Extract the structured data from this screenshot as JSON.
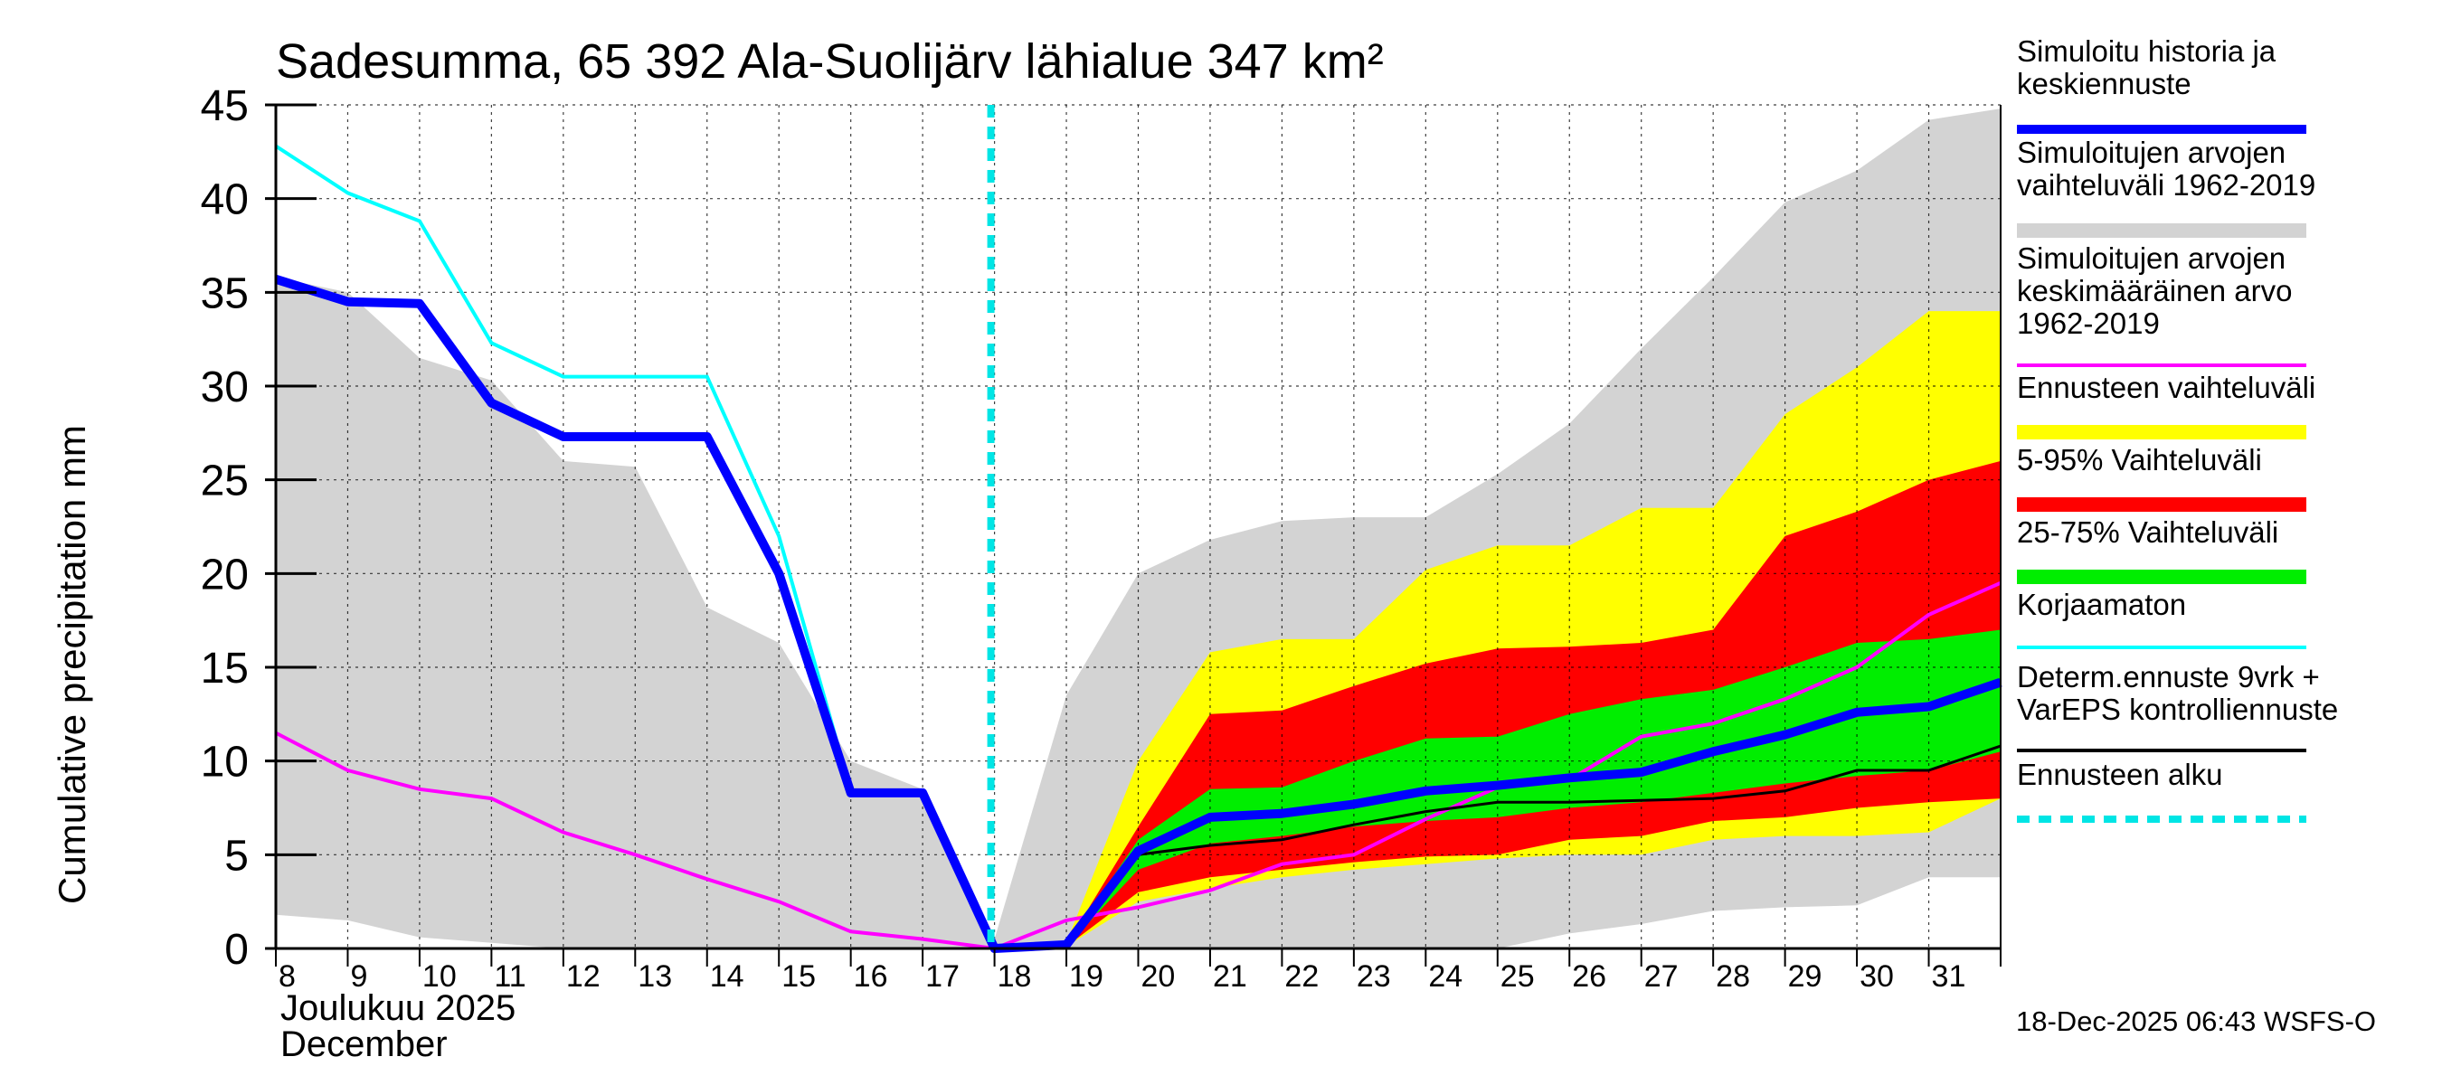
{
  "chart_data": {
    "type": "area",
    "title": "Sadesumma, 65 392 Ala-Suolijärv lähialue 347 km²",
    "ylabel": "Cumulative precipitation   mm",
    "xlabel_fi": "Joulukuu  2025",
    "xlabel_en": "December",
    "timestamp": "18-Dec-2025 06:43 WSFS-O",
    "ylim": [
      0,
      45
    ],
    "y_ticks": [
      0,
      5,
      10,
      15,
      20,
      25,
      30,
      35,
      40,
      45
    ],
    "y_tick_labels": [
      "0",
      "5",
      "10",
      "15",
      "20",
      "25",
      "30",
      "35",
      "40",
      "45"
    ],
    "x_range": [
      8,
      32
    ],
    "x_ticks": [
      8,
      9,
      10,
      11,
      12,
      13,
      14,
      15,
      16,
      17,
      18,
      19,
      20,
      21,
      22,
      23,
      24,
      25,
      26,
      27,
      28,
      29,
      30,
      31
    ],
    "x_tick_labels": [
      "8",
      "9",
      "10",
      "11",
      "12",
      "13",
      "14",
      "15",
      "16",
      "17",
      "18",
      "19",
      "20",
      "21",
      "22",
      "23",
      "24",
      "25",
      "26",
      "27",
      "28",
      "29",
      "30",
      "31"
    ],
    "forecast_start": 18,
    "colors": {
      "hist_range": "#d3d3d3",
      "ens_full": "#ffff00",
      "ens_5_95": "#ff0000",
      "ens_25_75": "#00ee00",
      "mean": "#ff00ff",
      "uncorrected": "#00ffff",
      "simulated": "#0000ff",
      "determ": "#000000",
      "forecast_start": "#00e5e5"
    },
    "series": [
      {
        "name": "hist_range",
        "x": [
          8,
          9,
          10,
          11,
          12,
          13,
          14,
          15,
          16,
          17,
          18,
          19,
          20,
          21,
          22,
          23,
          24,
          25,
          26,
          27,
          28,
          29,
          30,
          31,
          32
        ],
        "upper": [
          35.8,
          35.0,
          31.5,
          30.3,
          26.0,
          25.7,
          18.2,
          16.3,
          10.0,
          8.5,
          0.5,
          13.5,
          20.0,
          21.8,
          22.8,
          23.0,
          23.0,
          25.3,
          28.0,
          32.0,
          35.8,
          39.8,
          41.5,
          44.2,
          44.8
        ],
        "lower": [
          1.8,
          1.5,
          0.6,
          0.3,
          0.0,
          0.0,
          0.0,
          0.0,
          0.0,
          0.0,
          0.0,
          0.0,
          0.0,
          0.0,
          0.0,
          0.0,
          0.0,
          0.0,
          0.8,
          1.3,
          2.0,
          2.2,
          2.3,
          3.8,
          3.8
        ]
      },
      {
        "name": "ens_full",
        "x": [
          18,
          19,
          20,
          21,
          22,
          23,
          24,
          25,
          26,
          27,
          28,
          29,
          30,
          31,
          32
        ],
        "upper": [
          0.0,
          0.3,
          10.0,
          15.8,
          16.5,
          16.5,
          20.2,
          21.5,
          21.5,
          23.5,
          23.5,
          28.5,
          31.0,
          34.0,
          34.0
        ],
        "lower": [
          0.0,
          0.1,
          2.5,
          3.2,
          3.8,
          4.2,
          4.5,
          4.8,
          5.0,
          5.0,
          5.8,
          6.0,
          6.0,
          6.2,
          8.0
        ]
      },
      {
        "name": "ens_5_95",
        "x": [
          18,
          19,
          20,
          21,
          22,
          23,
          24,
          25,
          26,
          27,
          28,
          29,
          30,
          31,
          32
        ],
        "upper": [
          0.0,
          0.2,
          6.5,
          12.5,
          12.7,
          14.0,
          15.2,
          16.0,
          16.1,
          16.3,
          17.0,
          22.0,
          23.3,
          25.0,
          26.0
        ],
        "lower": [
          0.0,
          0.1,
          3.0,
          3.8,
          4.2,
          4.6,
          4.9,
          5.0,
          5.8,
          6.0,
          6.8,
          7.0,
          7.5,
          7.8,
          8.0
        ]
      },
      {
        "name": "ens_25_75",
        "x": [
          18,
          19,
          20,
          21,
          22,
          23,
          24,
          25,
          26,
          27,
          28,
          29,
          30,
          31,
          32
        ],
        "upper": [
          0.0,
          0.2,
          5.8,
          8.5,
          8.6,
          10.0,
          11.2,
          11.3,
          12.5,
          13.3,
          13.8,
          15.0,
          16.3,
          16.5,
          17.0
        ],
        "lower": [
          0.0,
          0.1,
          4.2,
          5.6,
          6.0,
          6.5,
          6.8,
          7.0,
          7.5,
          7.8,
          8.3,
          8.8,
          9.2,
          9.5,
          10.5
        ]
      },
      {
        "name": "mean",
        "label": "Simuloitujen arvojen keskimääräinen arvo 1962-2019",
        "x": [
          8,
          9,
          10,
          11,
          12,
          13,
          14,
          15,
          16,
          17,
          18,
          19,
          20,
          21,
          22,
          23,
          24,
          25,
          26,
          27,
          28,
          29,
          30,
          31,
          32
        ],
        "y": [
          11.5,
          9.5,
          8.5,
          8.0,
          6.2,
          5.0,
          3.7,
          2.5,
          0.9,
          0.5,
          0.0,
          1.5,
          2.2,
          3.1,
          4.5,
          5.0,
          6.9,
          8.6,
          9.0,
          11.3,
          12.0,
          13.3,
          15.0,
          17.8,
          19.5
        ]
      },
      {
        "name": "uncorrected",
        "label": "Korjaamaton",
        "x": [
          8,
          9,
          10,
          11,
          12,
          13,
          14,
          15,
          16,
          17,
          18,
          19,
          20,
          21,
          22,
          23,
          24,
          25,
          26,
          27,
          28,
          29,
          30,
          31,
          32
        ],
        "y": [
          42.8,
          40.3,
          38.8,
          32.3,
          30.5,
          30.5,
          30.5,
          22.0,
          8.4,
          8.4,
          0.0,
          0.2,
          5.2,
          7.0,
          7.2,
          7.7,
          8.4,
          8.7,
          9.1,
          9.4,
          10.5,
          11.4,
          12.6,
          12.9,
          14.2
        ]
      },
      {
        "name": "simulated",
        "label": "Simuloitu historia ja keskiennuste",
        "x": [
          8,
          9,
          10,
          11,
          12,
          13,
          14,
          15,
          16,
          17,
          18,
          19,
          20,
          21,
          22,
          23,
          24,
          25,
          26,
          27,
          28,
          29,
          30,
          31,
          32
        ],
        "y": [
          35.7,
          34.5,
          34.4,
          29.1,
          27.3,
          27.3,
          27.3,
          20.0,
          8.3,
          8.3,
          0.0,
          0.2,
          5.2,
          7.0,
          7.2,
          7.7,
          8.4,
          8.7,
          9.1,
          9.4,
          10.5,
          11.4,
          12.6,
          12.9,
          14.2
        ]
      },
      {
        "name": "determ",
        "label": "Determ.ennuste 9vrk + VarEPS kontrolliennuste",
        "x": [
          18,
          19,
          20,
          21,
          22,
          23,
          24,
          25,
          26,
          27,
          28,
          29,
          30,
          31,
          32
        ],
        "y": [
          0.0,
          0.1,
          5.0,
          5.5,
          5.8,
          6.6,
          7.3,
          7.8,
          7.8,
          7.9,
          8.0,
          8.4,
          9.5,
          9.5,
          10.8
        ]
      }
    ],
    "legend": [
      {
        "key": "simulated",
        "lines": [
          "Simuloitu historia ja",
          "keskiennuste"
        ],
        "style": "line-thick"
      },
      {
        "key": "hist_range",
        "lines": [
          "Simuloitujen arvojen",
          "vaihteluväli 1962-2019"
        ],
        "style": "band"
      },
      {
        "key": "mean",
        "lines": [
          "Simuloitujen arvojen",
          "keskimääräinen arvo",
          "   1962-2019"
        ],
        "style": "line"
      },
      {
        "key": "ens_full",
        "lines": [
          "Ennusteen vaihteluväli"
        ],
        "style": "band"
      },
      {
        "key": "ens_5_95",
        "lines": [
          "5-95% Vaihteluväli"
        ],
        "style": "band"
      },
      {
        "key": "ens_25_75",
        "lines": [
          "25-75% Vaihteluväli"
        ],
        "style": "band"
      },
      {
        "key": "uncorrected",
        "lines": [
          "Korjaamaton"
        ],
        "style": "line"
      },
      {
        "key": "determ",
        "lines": [
          "Determ.ennuste 9vrk +",
          "VarEPS kontrolliennuste"
        ],
        "style": "line"
      },
      {
        "key": "forecast_start",
        "lines": [
          "Ennusteen alku"
        ],
        "style": "dashed"
      }
    ]
  }
}
